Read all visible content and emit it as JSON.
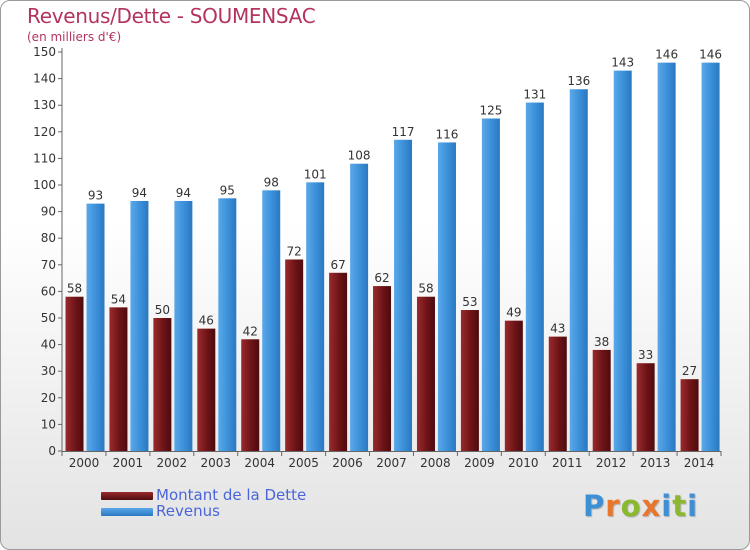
{
  "title": "Revenus/Dette - SOUMENSAC",
  "subtitle": "(en milliers d'€)",
  "colors": {
    "dette": "#7a1a1e",
    "revenus": "#3c93dc",
    "title": "#b3345f",
    "axis_text": "#333333",
    "legend_text": "#4a66d8"
  },
  "legend": {
    "dette_label": "Montant de la Dette",
    "revenus_label": "Revenus"
  },
  "logo": {
    "letters": [
      "P",
      "r",
      "o",
      "x",
      "i",
      "t",
      "i"
    ],
    "colors": [
      "#3d8fd6",
      "#e8762b",
      "#8ab82e",
      "#e8762b",
      "#3d8fd6",
      "#8ab82e",
      "#3d8fd6"
    ]
  },
  "chart_data": {
    "type": "bar",
    "categories": [
      "2000",
      "2001",
      "2002",
      "2003",
      "2004",
      "2005",
      "2006",
      "2007",
      "2008",
      "2009",
      "2010",
      "2011",
      "2012",
      "2013",
      "2014"
    ],
    "series": [
      {
        "name": "Montant de la Dette",
        "values": [
          58,
          54,
          50,
          46,
          42,
          72,
          67,
          62,
          58,
          53,
          49,
          43,
          38,
          33,
          27
        ]
      },
      {
        "name": "Revenus",
        "values": [
          93,
          94,
          94,
          95,
          98,
          101,
          108,
          117,
          116,
          125,
          131,
          136,
          143,
          146,
          146
        ]
      }
    ],
    "ylim": [
      0,
      150
    ],
    "yticks": [
      0,
      10,
      20,
      30,
      40,
      50,
      60,
      70,
      80,
      90,
      100,
      110,
      120,
      130,
      140,
      150
    ],
    "grid": false,
    "legend_position": "bottom-left"
  }
}
